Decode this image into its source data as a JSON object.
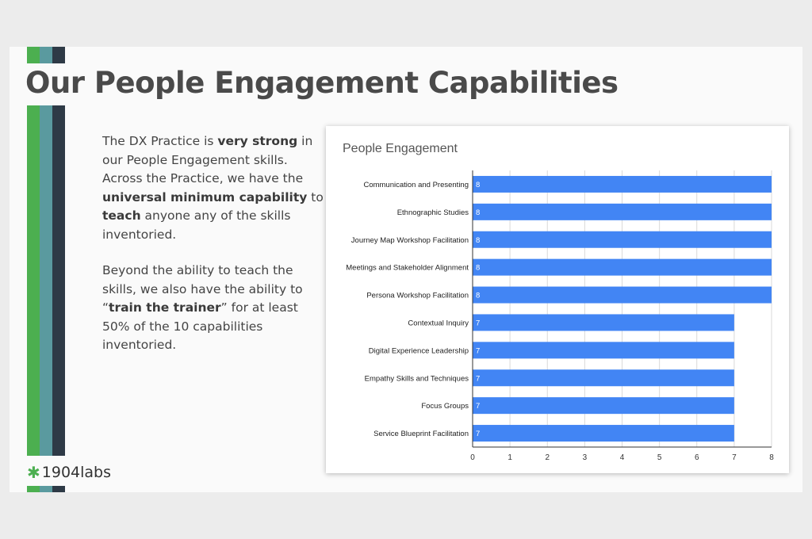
{
  "slide": {
    "title": "Our People Engagement Capabilities",
    "paragraph1": [
      {
        "text": "The DX Practice is ",
        "bold": false
      },
      {
        "text": "very strong",
        "bold": true
      },
      {
        "text": " in our People Engagement skills. Across the Practice, we have the ",
        "bold": false
      },
      {
        "text": "universal minimum capability",
        "bold": true
      },
      {
        "text": " to ",
        "bold": false
      },
      {
        "text": "teach",
        "bold": true
      },
      {
        "text": " anyone any of the skills inventoried.",
        "bold": false
      }
    ],
    "paragraph2": [
      {
        "text": "Beyond the ability to teach the skills, we also have the ability to “",
        "bold": false
      },
      {
        "text": "train the trainer",
        "bold": true
      },
      {
        "text": "” for at least 50% of the 10 capabilities inventoried.",
        "bold": false
      }
    ],
    "logo_text": "1904labs",
    "logo_mark": "✱",
    "colors": {
      "green": "#4caf50",
      "teal": "#5a9a9f",
      "navy": "#2e3a46",
      "bar": "#4285f4"
    }
  },
  "chart_data": {
    "type": "bar",
    "orientation": "horizontal",
    "title": "People Engagement",
    "categories": [
      "Communication and Presenting",
      "Ethnographic Studies",
      "Journey Map Workshop Facilitation",
      "Meetings and Stakeholder Alignment",
      "Persona Workshop Facilitation",
      "Contextual Inquiry",
      "Digital Experience Leadership",
      "Empathy Skills and Techniques",
      "Focus Groups",
      "Service Blueprint Facilitation"
    ],
    "values": [
      8,
      8,
      8,
      8,
      8,
      7,
      7,
      7,
      7,
      7
    ],
    "xlim": [
      0,
      8
    ],
    "xticks": [
      0,
      1,
      2,
      3,
      4,
      5,
      6,
      7,
      8
    ],
    "grid": true,
    "data_labels": true,
    "bar_color": "#4285f4"
  }
}
